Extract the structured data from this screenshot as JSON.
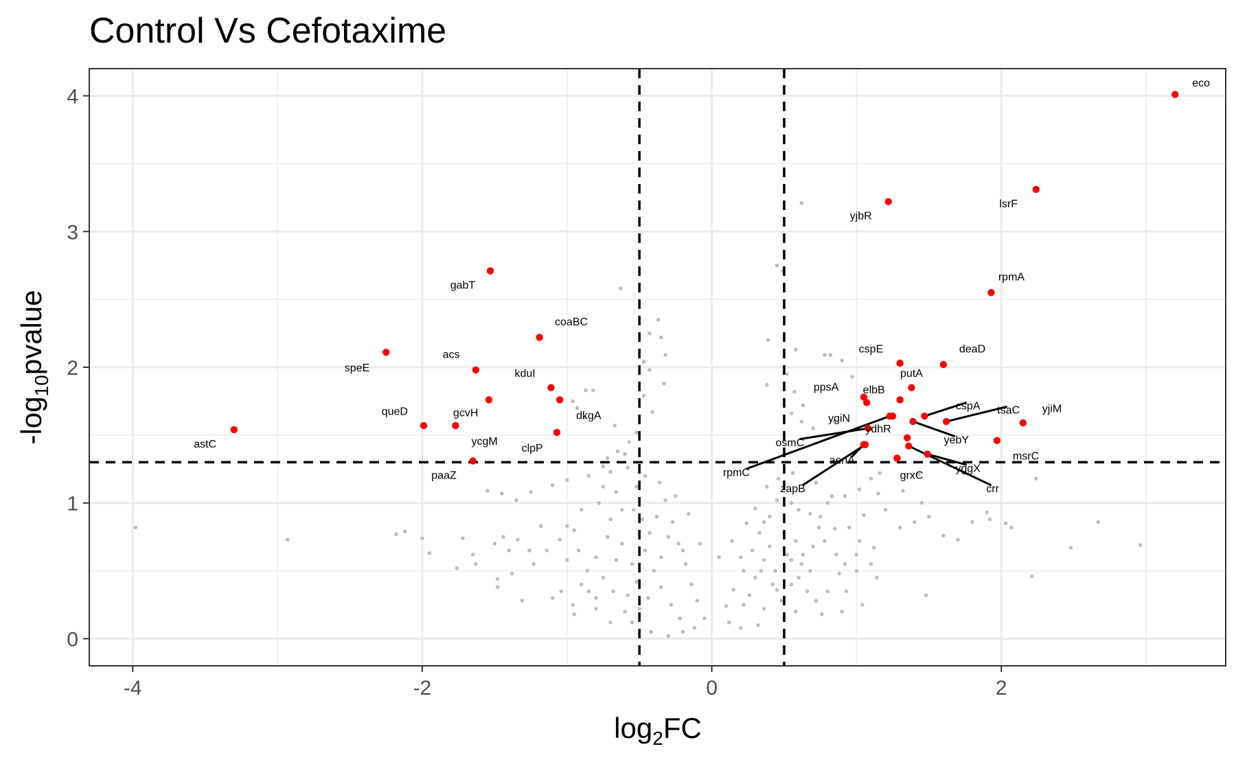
{
  "chart_data": {
    "type": "scatter",
    "title": "Control Vs Cefotaxime",
    "xlabel_base": "log",
    "xlabel_sub": "2",
    "xlabel_tail": "FC",
    "ylabel_pre": "-log",
    "ylabel_sub": "10",
    "ylabel_tail": "pvalue",
    "xlim": [
      -4.3,
      3.55
    ],
    "ylim": [
      -0.2,
      4.2
    ],
    "x_ticks": [
      -4,
      -2,
      0,
      2
    ],
    "x_tick_labels": [
      "-4",
      "-2",
      "0",
      "2"
    ],
    "y_ticks": [
      0,
      1,
      2,
      3,
      4
    ],
    "y_tick_labels": [
      "0",
      "1",
      "2",
      "3",
      "4"
    ],
    "grid": true,
    "thresholds": {
      "x": [
        -0.5,
        0.5
      ],
      "y": 1.3
    },
    "colors": {
      "significant": "#ff0000",
      "background": "#bebebe"
    },
    "significant": [
      {
        "gene": "eco",
        "x": 3.2,
        "y": 4.01,
        "lx": 3.38,
        "ly": 4.09
      },
      {
        "gene": "lsrF",
        "x": 2.24,
        "y": 3.31,
        "lx": 2.05,
        "ly": 3.2
      },
      {
        "gene": "yjbR",
        "x": 1.22,
        "y": 3.22,
        "lx": 1.03,
        "ly": 3.11
      },
      {
        "gene": "rpmA",
        "x": 1.93,
        "y": 2.55,
        "lx": 2.07,
        "ly": 2.66
      },
      {
        "gene": "gabT",
        "x": -1.53,
        "y": 2.71,
        "lx": -1.72,
        "ly": 2.6
      },
      {
        "gene": "coaBC",
        "x": -1.19,
        "y": 2.22,
        "lx": -0.97,
        "ly": 2.33
      },
      {
        "gene": "speE",
        "x": -2.25,
        "y": 2.11,
        "lx": -2.45,
        "ly": 1.99
      },
      {
        "gene": "acs",
        "x": -1.63,
        "y": 1.98,
        "lx": -1.8,
        "ly": 2.09
      },
      {
        "gene": "kduI",
        "x": -1.11,
        "y": 1.85,
        "lx": -1.29,
        "ly": 1.95
      },
      {
        "gene": "dkgA",
        "x": -1.05,
        "y": 1.76,
        "lx": -0.85,
        "ly": 1.64
      },
      {
        "gene": "gcvH",
        "x": -1.54,
        "y": 1.76,
        "lx": -1.7,
        "ly": 1.66
      },
      {
        "gene": "queD",
        "x": -1.99,
        "y": 1.57,
        "lx": -2.19,
        "ly": 1.67
      },
      {
        "gene": "ycgM",
        "x": -1.77,
        "y": 1.57,
        "lx": -1.57,
        "ly": 1.45
      },
      {
        "gene": "astC",
        "x": -3.3,
        "y": 1.54,
        "lx": -3.5,
        "ly": 1.43
      },
      {
        "gene": "clpP",
        "x": -1.07,
        "y": 1.52,
        "lx": -1.24,
        "ly": 1.4
      },
      {
        "gene": "paaZ",
        "x": -1.65,
        "y": 1.31,
        "lx": -1.85,
        "ly": 1.2
      },
      {
        "gene": "cspE",
        "x": 1.3,
        "y": 2.03,
        "lx": 1.1,
        "ly": 2.13
      },
      {
        "gene": "deaD",
        "x": 1.6,
        "y": 2.02,
        "lx": 1.8,
        "ly": 2.13
      },
      {
        "gene": "putA",
        "x": 1.38,
        "y": 1.85,
        "lx": 1.38,
        "ly": 1.95
      },
      {
        "gene": "ppsA",
        "x": 1.05,
        "y": 1.78,
        "lx": 0.79,
        "ly": 1.85
      },
      {
        "gene": "elbB",
        "x": 1.07,
        "y": 1.74,
        "lx": 1.12,
        "ly": 1.83
      },
      {
        "gene": "cspA",
        "x": 1.47,
        "y": 1.64,
        "lx": 1.77,
        "ly": 1.71,
        "line": true
      },
      {
        "gene": "tsaC",
        "x": 1.62,
        "y": 1.6,
        "lx": 2.05,
        "ly": 1.68,
        "line": true
      },
      {
        "gene": "yjiM",
        "x": 2.15,
        "y": 1.59,
        "lx": 2.35,
        "ly": 1.69
      },
      {
        "gene": "yebY",
        "x": 1.39,
        "y": 1.6,
        "lx": 1.69,
        "ly": 1.46,
        "line": true
      },
      {
        "gene": "ygiN",
        "x": 1.3,
        "y": 1.76,
        "lx": 0.88,
        "ly": 1.62
      },
      {
        "gene": "ydhR",
        "x": 1.25,
        "y": 1.64,
        "lx": 1.15,
        "ly": 1.54
      },
      {
        "gene": "osmC",
        "x": 1.08,
        "y": 1.55,
        "lx": 0.54,
        "ly": 1.44,
        "line": true
      },
      {
        "gene": "rpmC",
        "x": 1.23,
        "y": 1.64,
        "lx": 0.17,
        "ly": 1.22,
        "line": true
      },
      {
        "gene": "msrC",
        "x": 1.97,
        "y": 1.46,
        "lx": 2.17,
        "ly": 1.34
      },
      {
        "gene": "aenA",
        "x": 1.05,
        "y": 1.43,
        "lx": 0.9,
        "ly": 1.31,
        "line": true
      },
      {
        "gene": "zapB",
        "x": 1.06,
        "y": 1.43,
        "lx": 0.56,
        "ly": 1.1,
        "line": true
      },
      {
        "gene": "grxC",
        "x": 1.28,
        "y": 1.33,
        "lx": 1.38,
        "ly": 1.2
      },
      {
        "gene": "yggX",
        "x": 1.49,
        "y": 1.36,
        "lx": 1.77,
        "ly": 1.25,
        "line": true
      },
      {
        "gene": "crr",
        "x": 1.36,
        "y": 1.42,
        "lx": 1.94,
        "ly": 1.1,
        "line": true
      },
      {
        "gene": "",
        "x": 1.35,
        "y": 1.48
      }
    ],
    "background_points": [
      [
        -3.98,
        0.82
      ],
      [
        -2.93,
        0.73
      ],
      [
        -2.18,
        0.77
      ],
      [
        -2.12,
        0.79
      ],
      [
        -2.0,
        0.74
      ],
      [
        -1.95,
        0.63
      ],
      [
        0.62,
        3.21
      ],
      [
        -0.63,
        2.58
      ],
      [
        0.45,
        2.75
      ],
      [
        0.49,
        2.71
      ],
      [
        -0.37,
        2.35
      ],
      [
        -0.43,
        2.25
      ],
      [
        -0.35,
        2.22
      ],
      [
        -0.32,
        2.09
      ],
      [
        -0.47,
        2.04
      ],
      [
        -0.43,
        1.98
      ],
      [
        -0.47,
        1.79
      ],
      [
        -0.41,
        1.67
      ],
      [
        -0.33,
        1.88
      ],
      [
        0.39,
        2.2
      ],
      [
        0.58,
        2.13
      ],
      [
        0.78,
        2.09
      ],
      [
        0.9,
        2.05
      ],
      [
        0.82,
        2.09
      ],
      [
        0.97,
        1.93
      ],
      [
        0.52,
        1.95
      ],
      [
        0.38,
        1.87
      ],
      [
        0.57,
        1.82
      ],
      [
        0.63,
        1.72
      ],
      [
        0.7,
        1.55
      ],
      [
        0.55,
        1.66
      ],
      [
        0.62,
        1.6
      ],
      [
        0.85,
        1.6
      ],
      [
        -0.67,
        1.57
      ],
      [
        -0.52,
        1.52
      ],
      [
        -0.57,
        1.45
      ],
      [
        -0.65,
        1.38
      ],
      [
        -0.72,
        1.33
      ],
      [
        -0.93,
        1.7
      ],
      [
        -0.87,
        1.83
      ],
      [
        -0.82,
        1.83
      ],
      [
        -0.96,
        1.75
      ],
      [
        -0.88,
        1.63
      ],
      [
        -0.6,
        1.36
      ],
      [
        -0.75,
        1.27
      ],
      [
        -1.0,
        1.17
      ],
      [
        -1.1,
        1.13
      ],
      [
        -1.25,
        1.08
      ],
      [
        -1.45,
        1.07
      ],
      [
        -1.35,
        1.02
      ],
      [
        -1.55,
        1.09
      ],
      [
        -1.72,
        0.74
      ],
      [
        -1.65,
        0.62
      ],
      [
        -1.63,
        0.55
      ],
      [
        -1.76,
        0.52
      ],
      [
        -1.5,
        0.7
      ],
      [
        -1.44,
        0.75
      ],
      [
        -1.34,
        0.73
      ],
      [
        -1.4,
        0.65
      ],
      [
        -1.23,
        0.55
      ],
      [
        -1.26,
        0.65
      ],
      [
        -1.18,
        0.83
      ],
      [
        -1.14,
        0.65
      ],
      [
        -1.0,
        0.83
      ],
      [
        -1.05,
        0.73
      ],
      [
        -0.92,
        0.65
      ],
      [
        -1.04,
        0.35
      ],
      [
        -0.96,
        0.25
      ],
      [
        -1.1,
        0.3
      ],
      [
        -1.38,
        0.48
      ],
      [
        -1.48,
        0.44
      ],
      [
        -1.48,
        0.38
      ],
      [
        -1.31,
        0.28
      ],
      [
        -0.95,
        0.18
      ],
      [
        -0.8,
        0.22
      ],
      [
        -0.85,
        0.35
      ],
      [
        1.1,
        1.18
      ],
      [
        1.16,
        1.22
      ],
      [
        1.43,
        1.21
      ],
      [
        1.32,
        1.09
      ],
      [
        1.45,
        1.0
      ],
      [
        1.15,
        1.07
      ],
      [
        0.83,
        1.05
      ],
      [
        0.72,
        1.15
      ],
      [
        0.55,
        1.0
      ],
      [
        0.6,
        0.95
      ],
      [
        0.75,
        0.9
      ],
      [
        0.85,
        0.81
      ],
      [
        0.95,
        0.82
      ],
      [
        1.05,
        0.91
      ],
      [
        1.2,
        0.95
      ],
      [
        1.3,
        0.82
      ],
      [
        1.4,
        0.86
      ],
      [
        1.5,
        0.9
      ],
      [
        1.6,
        0.76
      ],
      [
        1.7,
        0.73
      ],
      [
        1.8,
        0.86
      ],
      [
        1.9,
        0.93
      ],
      [
        1.92,
        0.88
      ],
      [
        2.03,
        0.85
      ],
      [
        2.07,
        0.82
      ],
      [
        2.24,
        1.18
      ],
      [
        2.67,
        0.86
      ],
      [
        2.48,
        0.67
      ],
      [
        2.96,
        0.69
      ],
      [
        2.21,
        0.46
      ],
      [
        1.48,
        0.32
      ],
      [
        1.1,
        0.55
      ],
      [
        1.14,
        0.45
      ],
      [
        1.0,
        0.5
      ],
      [
        0.88,
        0.48
      ],
      [
        0.93,
        0.35
      ],
      [
        0.8,
        0.35
      ],
      [
        0.9,
        0.2
      ],
      [
        1.04,
        0.25
      ],
      [
        0.68,
        0.5
      ],
      [
        0.63,
        0.62
      ],
      [
        0.55,
        0.58
      ],
      [
        1.02,
        0.72
      ],
      [
        1.12,
        0.67
      ],
      [
        0.45,
        1.02
      ],
      [
        -0.44,
        0.3
      ],
      [
        -0.55,
        0.55
      ],
      [
        -0.62,
        0.7
      ],
      [
        -0.7,
        0.88
      ],
      [
        -0.78,
        1.0
      ],
      [
        -0.66,
        1.08
      ],
      [
        -0.7,
        1.23
      ],
      [
        -0.58,
        1.26
      ],
      [
        -0.54,
        0.95
      ],
      [
        -0.72,
        0.75
      ],
      [
        -0.8,
        0.6
      ],
      [
        -0.86,
        0.5
      ],
      [
        -0.75,
        0.45
      ],
      [
        -0.68,
        0.35
      ],
      [
        -0.6,
        0.2
      ],
      [
        -0.55,
        0.12
      ],
      [
        -0.42,
        0.05
      ],
      [
        -0.3,
        0.02
      ],
      [
        -0.2,
        0.05
      ],
      [
        -0.12,
        0.08
      ],
      [
        0.12,
        0.12
      ],
      [
        0.2,
        0.08
      ],
      [
        0.32,
        0.1
      ],
      [
        0.36,
        0.22
      ],
      [
        0.45,
        0.36
      ],
      [
        0.44,
        0.5
      ],
      [
        0.4,
        0.68
      ],
      [
        0.36,
        0.58
      ],
      [
        0.3,
        0.45
      ],
      [
        0.26,
        0.32
      ],
      [
        0.22,
        0.25
      ],
      [
        -0.22,
        0.15
      ],
      [
        -0.28,
        0.25
      ],
      [
        -0.35,
        0.38
      ],
      [
        -0.4,
        0.5
      ],
      [
        -0.46,
        0.65
      ],
      [
        -0.43,
        0.78
      ],
      [
        -0.38,
        0.9
      ],
      [
        -0.32,
        1.02
      ],
      [
        -0.27,
        0.86
      ],
      [
        -0.23,
        0.7
      ],
      [
        -0.18,
        0.55
      ],
      [
        -0.14,
        0.4
      ],
      [
        -0.1,
        0.28
      ],
      [
        0.1,
        0.24
      ],
      [
        0.15,
        0.36
      ],
      [
        0.22,
        0.5
      ],
      [
        0.28,
        0.65
      ],
      [
        0.33,
        0.78
      ],
      [
        0.36,
        0.86
      ],
      [
        0.5,
        0.78
      ],
      [
        0.58,
        0.72
      ],
      [
        0.52,
        0.62
      ],
      [
        0.6,
        0.45
      ],
      [
        0.66,
        0.35
      ],
      [
        0.72,
        0.28
      ],
      [
        0.76,
        0.18
      ],
      [
        0.58,
        0.2
      ],
      [
        0.5,
        0.15
      ],
      [
        -0.5,
        0.22
      ],
      [
        -0.58,
        0.32
      ],
      [
        -0.66,
        0.58
      ],
      [
        -0.52,
        0.42
      ],
      [
        -0.48,
        0.88
      ],
      [
        -0.52,
        1.12
      ],
      [
        -0.46,
        1.2
      ],
      [
        -0.36,
        1.15
      ],
      [
        -0.25,
        1.05
      ],
      [
        -0.16,
        0.92
      ],
      [
        -0.08,
        0.7
      ],
      [
        0.05,
        0.6
      ],
      [
        0.14,
        0.72
      ],
      [
        0.24,
        0.85
      ],
      [
        0.3,
        0.96
      ],
      [
        0.38,
        1.12
      ],
      [
        0.46,
        1.18
      ],
      [
        0.56,
        1.22
      ],
      [
        -0.62,
        0.95
      ],
      [
        -0.75,
        1.12
      ],
      [
        -0.85,
        1.2
      ],
      [
        -0.9,
        0.95
      ],
      [
        -0.95,
        0.8
      ],
      [
        -1.0,
        0.58
      ],
      [
        -0.9,
        0.4
      ],
      [
        -0.8,
        0.3
      ],
      [
        -0.7,
        0.12
      ],
      [
        -0.35,
        0.6
      ],
      [
        -0.3,
        0.75
      ],
      [
        -0.2,
        0.65
      ],
      [
        0.2,
        0.6
      ],
      [
        0.34,
        0.5
      ],
      [
        0.42,
        0.4
      ],
      [
        0.48,
        0.28
      ],
      [
        0.55,
        0.4
      ],
      [
        0.62,
        0.55
      ],
      [
        0.7,
        0.68
      ],
      [
        0.78,
        0.72
      ],
      [
        0.86,
        0.62
      ],
      [
        0.92,
        0.55
      ],
      [
        1.0,
        0.62
      ],
      [
        0.74,
        0.82
      ],
      [
        0.68,
        0.92
      ],
      [
        0.8,
        1.0
      ],
      [
        0.92,
        1.05
      ],
      [
        1.02,
        1.1
      ],
      [
        0.4,
        0.9
      ],
      [
        -0.05,
        0.15
      ]
    ]
  }
}
